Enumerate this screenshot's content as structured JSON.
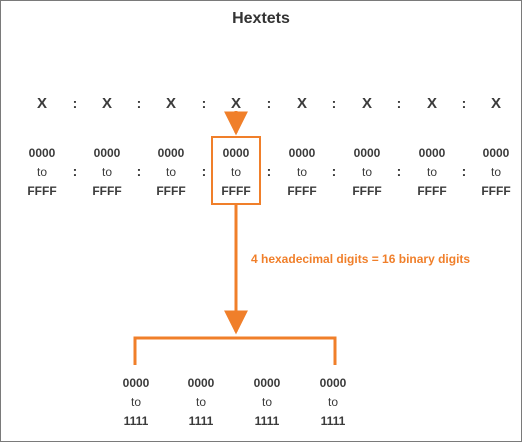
{
  "title": "Hextets",
  "separator": ":",
  "hextet_placeholders": [
    "X",
    "X",
    "X",
    "X",
    "X",
    "X",
    "X",
    "X"
  ],
  "hextet_ranges": [
    {
      "from": "0000",
      "to_word": "to",
      "to": "FFFF"
    },
    {
      "from": "0000",
      "to_word": "to",
      "to": "FFFF"
    },
    {
      "from": "0000",
      "to_word": "to",
      "to": "FFFF"
    },
    {
      "from": "0000",
      "to_word": "to",
      "to": "FFFF"
    },
    {
      "from": "0000",
      "to_word": "to",
      "to": "FFFF"
    },
    {
      "from": "0000",
      "to_word": "to",
      "to": "FFFF"
    },
    {
      "from": "0000",
      "to_word": "to",
      "to": "FFFF"
    },
    {
      "from": "0000",
      "to_word": "to",
      "to": "FFFF"
    }
  ],
  "annotation": "4 hexadecimal digits = 16 binary digits",
  "binary_groups": [
    {
      "from": "0000",
      "to_word": "to",
      "to": "1111"
    },
    {
      "from": "0000",
      "to_word": "to",
      "to": "1111"
    },
    {
      "from": "0000",
      "to_word": "to",
      "to": "1111"
    },
    {
      "from": "0000",
      "to_word": "to",
      "to": "1111"
    }
  ],
  "highlighted_hextet": 4,
  "colors": {
    "accent": "#f07f2a",
    "text": "#3b3b3b",
    "border": "#7a7a7a"
  }
}
